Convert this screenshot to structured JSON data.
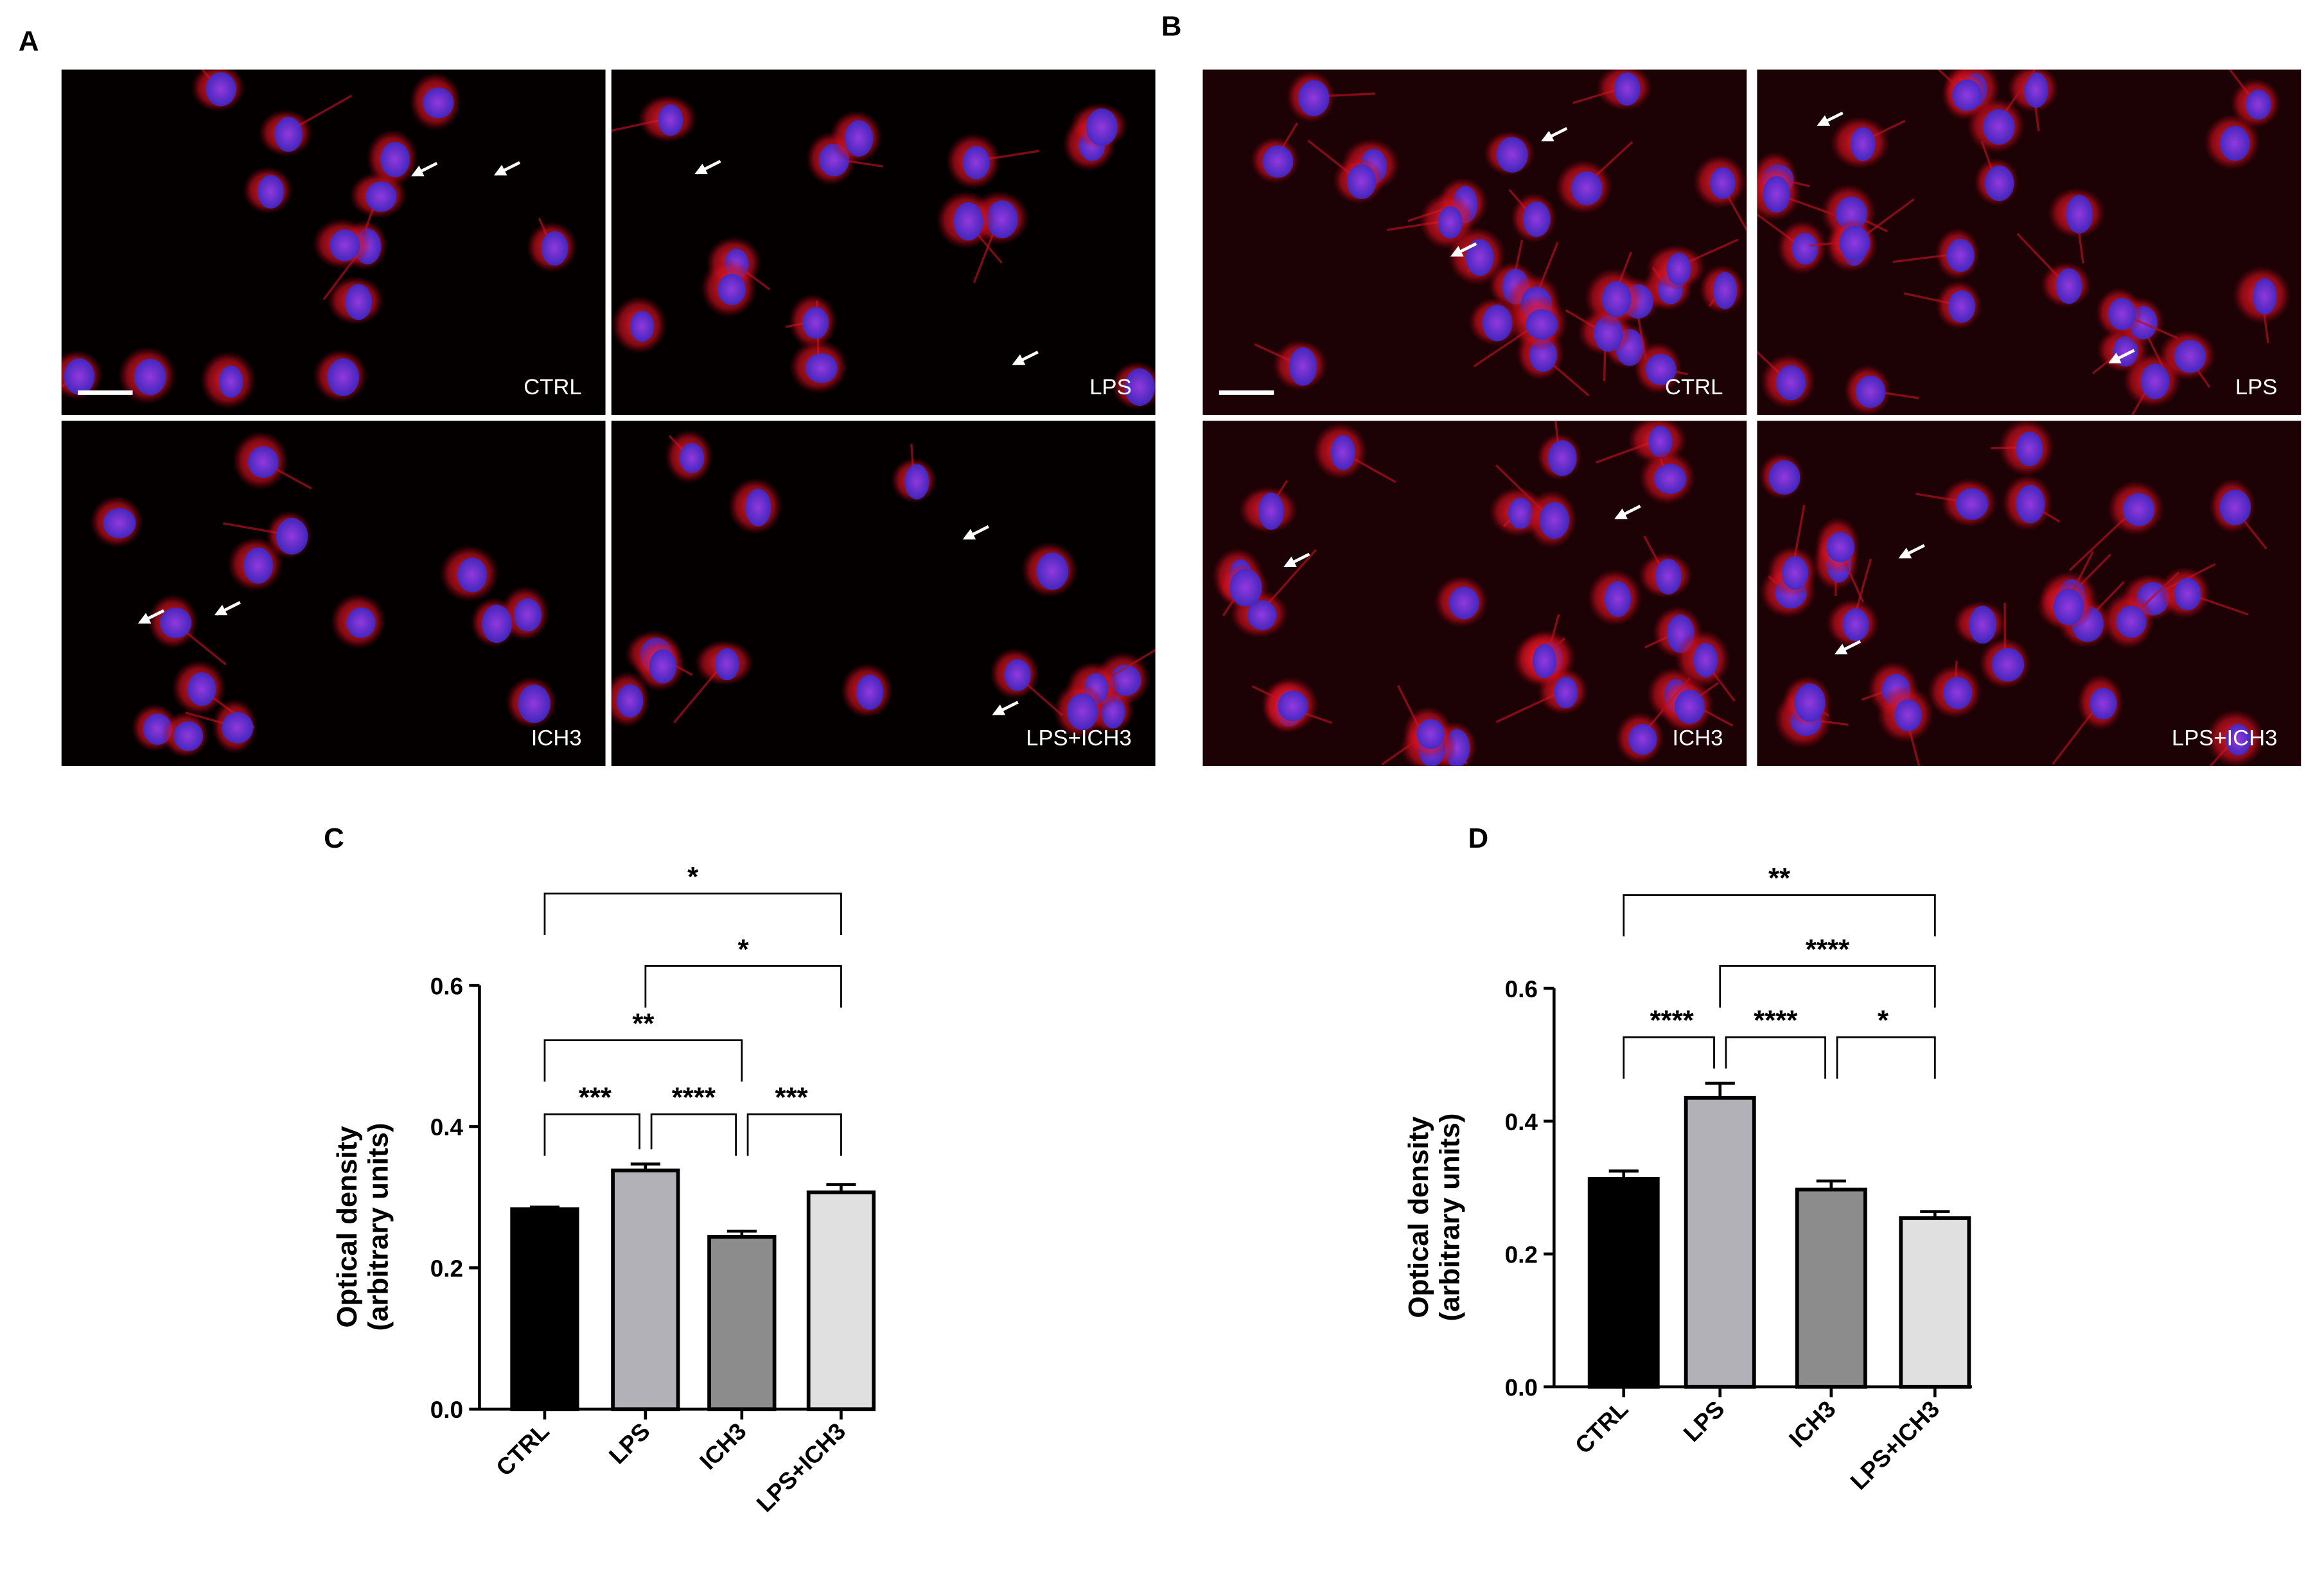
{
  "panels": [
    {
      "letter": "A",
      "images": [
        "CTRL",
        "LPS",
        "ICH3",
        "LPS+ICH3"
      ]
    },
    {
      "letter": "B",
      "images": [
        "CTRL",
        "LPS",
        "ICH3",
        "LPS+ICH3"
      ]
    }
  ],
  "chart_data": [
    {
      "type": "bar",
      "panel": "C",
      "ylabel": [
        "Optical density",
        "(arbitrary units)"
      ],
      "categories": [
        "CTRL",
        "LPS",
        "ICH3",
        "LPS+ICH3"
      ],
      "values": [
        0.283,
        0.338,
        0.244,
        0.307
      ],
      "errors": [
        0.003,
        0.009,
        0.008,
        0.011
      ],
      "colors": [
        "#000000",
        "#b1b1b7",
        "#8c8c8c",
        "#e0e0e0"
      ],
      "ylim": [
        0,
        0.6
      ],
      "yticks": [
        {
          "value": 0,
          "label": "0.0"
        },
        0.2,
        0.4,
        0.6
      ],
      "significance": [
        {
          "pair": [
            "CTRL",
            "LPS"
          ],
          "label": "***"
        },
        {
          "pair": [
            "LPS",
            "ICH3"
          ],
          "label": "****"
        },
        {
          "pair": [
            "ICH3",
            "LPS+ICH3"
          ],
          "label": "***"
        },
        {
          "pair": [
            "CTRL",
            "ICH3"
          ],
          "label": "**"
        },
        {
          "pair": [
            "LPS",
            "LPS+ICH3"
          ],
          "label": "*"
        },
        {
          "pair": [
            "CTRL",
            "LPS+ICH3"
          ],
          "label": "*"
        }
      ]
    },
    {
      "type": "bar",
      "panel": "D",
      "ylabel": [
        "Optical density",
        "(arbitrary units)"
      ],
      "categories": [
        "CTRL",
        "LPS",
        "ICH3",
        "LPS+ICH3"
      ],
      "values": [
        0.313,
        0.435,
        0.297,
        0.254
      ],
      "errors": [
        0.012,
        0.022,
        0.013,
        0.01
      ],
      "colors": [
        "#000000",
        "#b1b1b7",
        "#8c8c8c",
        "#e0e0e0"
      ],
      "ylim": [
        0,
        0.6
      ],
      "yticks": [
        {
          "value": 0,
          "label": "0.0"
        },
        0.2,
        0.4,
        0.6
      ],
      "significance": [
        {
          "pair": [
            "CTRL",
            "LPS"
          ],
          "label": "****"
        },
        {
          "pair": [
            "LPS",
            "ICH3"
          ],
          "label": "****"
        },
        {
          "pair": [
            "ICH3",
            "LPS+ICH3"
          ],
          "label": "*"
        },
        {
          "pair": [
            "LPS",
            "LPS+ICH3"
          ],
          "label": "****"
        },
        {
          "pair": [
            "CTRL",
            "LPS+ICH3"
          ],
          "label": "**"
        }
      ]
    }
  ]
}
